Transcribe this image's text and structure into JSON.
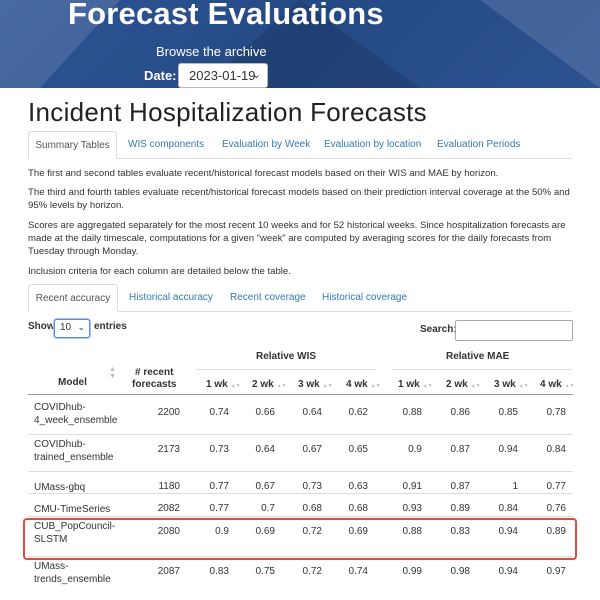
{
  "header": {
    "title": "Forecast Evaluations",
    "archive_text": "Browse the archive",
    "date_label": "Date:",
    "date_value": "2023-01-19"
  },
  "page_title": "Incident Hospitalization Forecasts",
  "main_tabs": [
    "Summary Tables",
    "WIS components",
    "Evaluation by Week",
    "Evaluation by location",
    "Evaluation Periods"
  ],
  "paragraphs": [
    "The first and second tables evaluate recent/historical forecast models based on their WIS and MAE by horizon.",
    "The third and fourth tables evaluate recent/historical forecast models based on their prediction interval coverage at the 50% and 95% levels by horizon.",
    "Scores are aggregated separately for the most recent 10 weeks and for 52 historical weeks. Since hospitalization forecasts are made at the daily timescale, computations for a given “week” are computed by averaging scores for the daily forecasts from Tuesday through Monday.",
    "Inclusion criteria for each column are detailed below the table."
  ],
  "sub_tabs": [
    "Recent accuracy",
    "Historical accuracy",
    "Recent coverage",
    "Historical coverage"
  ],
  "table_controls": {
    "show": "Show",
    "length": "10",
    "entries": "entries",
    "search": "Search:"
  },
  "table": {
    "group_wis": "Relative WIS",
    "group_mae": "Relative MAE",
    "col_model": "Model",
    "col_forecasts_1": "# recent",
    "col_forecasts_2": "forecasts",
    "horizons": [
      "1 wk",
      "2 wk",
      "3 wk",
      "4 wk",
      "1 wk",
      "2 wk",
      "3 wk",
      "4 wk"
    ],
    "rows": [
      {
        "model1": "COVIDhub-",
        "model2": "4_week_ensemble",
        "forecasts": "2200",
        "vals": [
          "0.74",
          "0.66",
          "0.64",
          "0.62",
          "0.88",
          "0.86",
          "0.85",
          "0.78"
        ]
      },
      {
        "model1": "COVIDhub-",
        "model2": "trained_ensemble",
        "forecasts": "2173",
        "vals": [
          "0.73",
          "0.64",
          "0.67",
          "0.65",
          "0.9",
          "0.87",
          "0.94",
          "0.84"
        ]
      },
      {
        "model1": "UMass-gbq",
        "model2": "",
        "forecasts": "1180",
        "vals": [
          "0.77",
          "0.67",
          "0.73",
          "0.63",
          "0.91",
          "0.87",
          "1",
          "0.77"
        ]
      },
      {
        "model1": "CMU-TimeSeries",
        "model2": "",
        "forecasts": "2082",
        "vals": [
          "0.77",
          "0.7",
          "0.68",
          "0.68",
          "0.93",
          "0.89",
          "0.84",
          "0.76"
        ]
      },
      {
        "model1": "CUB_PopCouncil-",
        "model2": "SLSTM",
        "forecasts": "2080",
        "vals": [
          "0.9",
          "0.69",
          "0.72",
          "0.69",
          "0.88",
          "0.83",
          "0.94",
          "0.89"
        ]
      },
      {
        "model1": "UMass-",
        "model2": "trends_ensemble",
        "forecasts": "2087",
        "vals": [
          "0.83",
          "0.75",
          "0.72",
          "0.74",
          "0.99",
          "0.98",
          "0.94",
          "0.97"
        ]
      }
    ]
  },
  "colors": {
    "header_bg": "#2b4f8c",
    "link": "#337ab7",
    "highlight": "#e04a3f"
  }
}
